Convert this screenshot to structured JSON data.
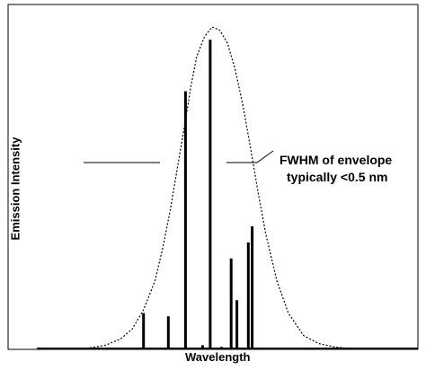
{
  "chart_data": {
    "type": "line",
    "xlabel": "Wavelength",
    "ylabel": "Emission Intensity",
    "annotation_lines": [
      "FWHM of envelope",
      "typically <0.5 nm"
    ],
    "x_range": [
      0,
      100
    ],
    "y_range": [
      0,
      100
    ],
    "grid": false,
    "envelope": {
      "style": "dotted",
      "x": [
        13,
        18,
        22,
        25,
        28,
        31,
        33,
        35,
        37,
        39,
        40.5,
        42,
        44,
        46,
        48,
        50,
        52,
        54,
        56,
        58,
        60,
        63,
        66,
        70,
        74,
        78,
        82
      ],
      "y": [
        0,
        1,
        3,
        6,
        12,
        21,
        31,
        43,
        57,
        71,
        82,
        91,
        97,
        100,
        99,
        95,
        87,
        76,
        63,
        49,
        36,
        21,
        11,
        4,
        1.5,
        0.5,
        0
      ]
    },
    "lines": {
      "x": [
        28,
        34.5,
        39,
        43.5,
        45.5,
        48.5,
        51,
        52.5,
        55.5,
        56.5
      ],
      "y": [
        11,
        10,
        80,
        1,
        96,
        0.5,
        28,
        15,
        33,
        38
      ]
    }
  }
}
